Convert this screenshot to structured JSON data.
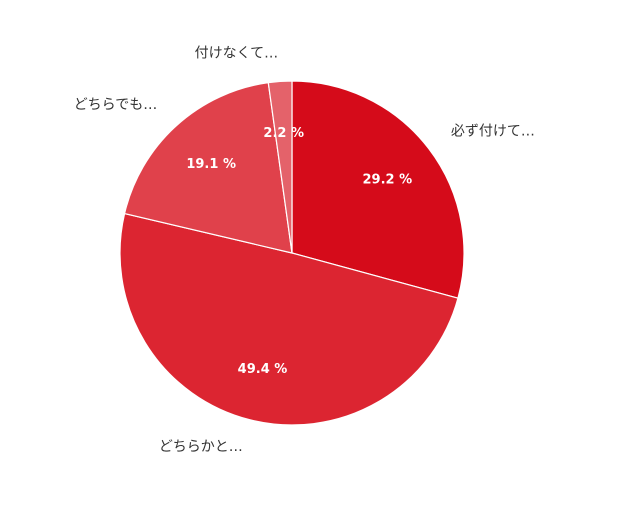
{
  "chart_data": {
    "type": "pie",
    "categories": [
      "必ず付けて…",
      "どちらかと…",
      "どちらでも…",
      "付けなくて…"
    ],
    "values": [
      29.2,
      49.4,
      19.1,
      2.2
    ],
    "value_labels": [
      "29.2 %",
      "49.4 %",
      "19.1 %",
      "2.2 %"
    ],
    "colors": [
      "#d50b1a",
      "#dc2531",
      "#e0414b",
      "#e4626a"
    ]
  }
}
